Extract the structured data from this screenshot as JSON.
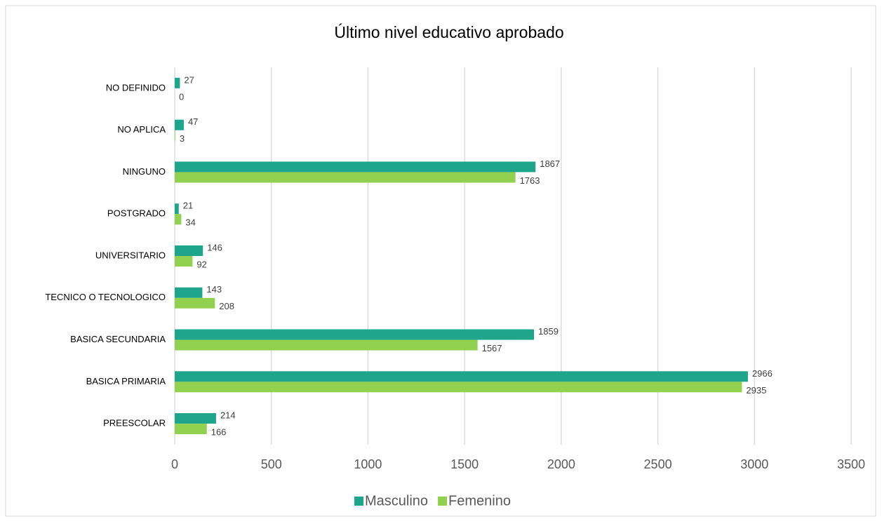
{
  "chart_data": {
    "type": "bar",
    "orientation": "horizontal",
    "title": "Último nivel educativo aprobado",
    "categories": [
      "NO DEFINIDO",
      "NO APLICA",
      "NINGUNO",
      "POSTGRADO",
      "UNIVERSITARIO",
      "TECNICO O TECNOLOGICO",
      "BASICA SECUNDARIA",
      "BASICA PRIMARIA",
      "PREESCOLAR"
    ],
    "series": [
      {
        "name": "Masculino",
        "color": "#1fa58b",
        "values": [
          27,
          47,
          1867,
          21,
          146,
          143,
          1859,
          2966,
          214
        ]
      },
      {
        "name": "Femenino",
        "color": "#92d050",
        "values": [
          0,
          3,
          1763,
          34,
          92,
          208,
          1567,
          2935,
          166
        ]
      }
    ],
    "xlim": [
      0,
      3500
    ],
    "xticks": [
      0,
      500,
      1000,
      1500,
      2000,
      2500,
      3000,
      3500
    ],
    "grid": true,
    "legend": "bottom"
  }
}
